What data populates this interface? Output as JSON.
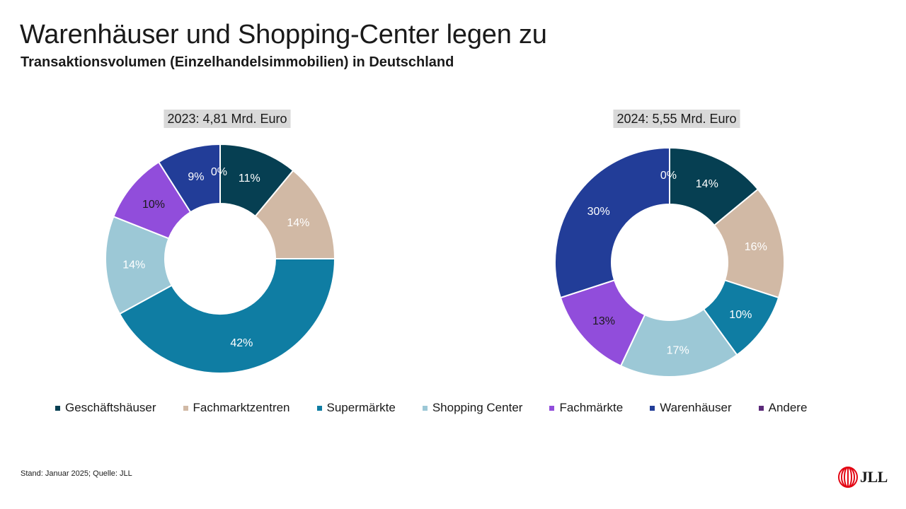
{
  "header": {
    "title": "Warenhäuser und Shopping-Center legen zu",
    "subtitle": "Transaktionsvolumen (Einzelhandelsimmobilien) in Deutschland"
  },
  "footer": {
    "note": "Stand: Januar 2025; Quelle: JLL",
    "logo_text": "JLL"
  },
  "colors": {
    "Geschäftshäuser": "#063f52",
    "Fachmarktzentren": "#d1b9a5",
    "Supermärkte": "#0f7da3",
    "Shopping Center": "#9cc8d6",
    "Fachmärkte": "#914ddb",
    "Warenhäuser": "#223d98",
    "Andere": "#5b2a7a"
  },
  "chart_data": [
    {
      "type": "pie",
      "title": "2023: 4,81 Mrd. Euro",
      "categories": [
        "Geschäftshäuser",
        "Fachmarktzentren",
        "Supermärkte",
        "Shopping Center",
        "Fachmärkte",
        "Warenhäuser",
        "Andere"
      ],
      "values": [
        11,
        14,
        42,
        14,
        10,
        9,
        0
      ],
      "labels": [
        "11%",
        "14%",
        "42%",
        "14%",
        "10%",
        "9%",
        "0%"
      ],
      "legend": "bottom"
    },
    {
      "type": "pie",
      "title": "2024: 5,55 Mrd. Euro",
      "categories": [
        "Geschäftshäuser",
        "Fachmarktzentren",
        "Supermärkte",
        "Shopping Center",
        "Fachmärkte",
        "Warenhäuser",
        "Andere"
      ],
      "values": [
        14,
        16,
        10,
        17,
        13,
        30,
        0
      ],
      "labels": [
        "14%",
        "16%",
        "10%",
        "17%",
        "13%",
        "30%",
        "0%"
      ],
      "legend": "bottom"
    }
  ]
}
